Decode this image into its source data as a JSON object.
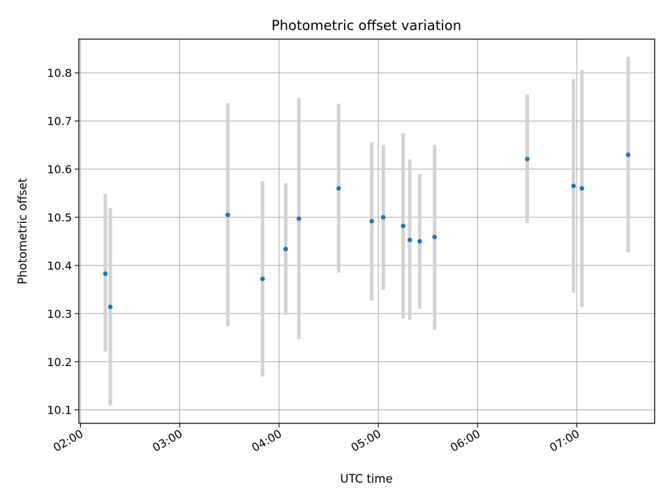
{
  "chart_data": {
    "type": "scatter",
    "title": "Photometric offset variation",
    "xlabel": "UTC time",
    "ylabel": "Photometric offset",
    "x_unit": "UTC time (HH:MM)",
    "xlim": [
      "01:59",
      "07:47"
    ],
    "ylim": [
      10.072,
      10.87
    ],
    "xticks": [
      "02:00",
      "03:00",
      "04:00",
      "05:00",
      "06:00",
      "07:00"
    ],
    "yticks": [
      "10.1",
      "10.2",
      "10.3",
      "10.4",
      "10.5",
      "10.6",
      "10.7",
      "10.8"
    ],
    "grid": true,
    "error_bars": true,
    "colors": {
      "point": "#1f77b4",
      "error_bar": "#d3d3d3",
      "grid": "#b0b0b0",
      "axes": "#000000"
    },
    "points": [
      {
        "x": "02:15",
        "y": 10.383,
        "y_low": 10.221,
        "y_high": 10.548
      },
      {
        "x": "02:18",
        "y": 10.314,
        "y_low": 10.109,
        "y_high": 10.519
      },
      {
        "x": "03:29",
        "y": 10.505,
        "y_low": 10.274,
        "y_high": 10.737
      },
      {
        "x": "03:50",
        "y": 10.372,
        "y_low": 10.169,
        "y_high": 10.575
      },
      {
        "x": "04:04",
        "y": 10.434,
        "y_low": 10.297,
        "y_high": 10.571
      },
      {
        "x": "04:12",
        "y": 10.497,
        "y_low": 10.247,
        "y_high": 10.748
      },
      {
        "x": "04:36",
        "y": 10.56,
        "y_low": 10.385,
        "y_high": 10.736
      },
      {
        "x": "04:56",
        "y": 10.492,
        "y_low": 10.327,
        "y_high": 10.656
      },
      {
        "x": "05:03",
        "y": 10.5,
        "y_low": 10.349,
        "y_high": 10.65
      },
      {
        "x": "05:15",
        "y": 10.482,
        "y_low": 10.29,
        "y_high": 10.675
      },
      {
        "x": "05:19",
        "y": 10.453,
        "y_low": 10.287,
        "y_high": 10.62
      },
      {
        "x": "05:25",
        "y": 10.45,
        "y_low": 10.31,
        "y_high": 10.59
      },
      {
        "x": "05:34",
        "y": 10.459,
        "y_low": 10.267,
        "y_high": 10.65
      },
      {
        "x": "06:30",
        "y": 10.621,
        "y_low": 10.488,
        "y_high": 10.755
      },
      {
        "x": "06:58",
        "y": 10.565,
        "y_low": 10.343,
        "y_high": 10.787
      },
      {
        "x": "07:03",
        "y": 10.56,
        "y_low": 10.314,
        "y_high": 10.806
      },
      {
        "x": "07:31",
        "y": 10.63,
        "y_low": 10.427,
        "y_high": 10.833
      }
    ]
  }
}
